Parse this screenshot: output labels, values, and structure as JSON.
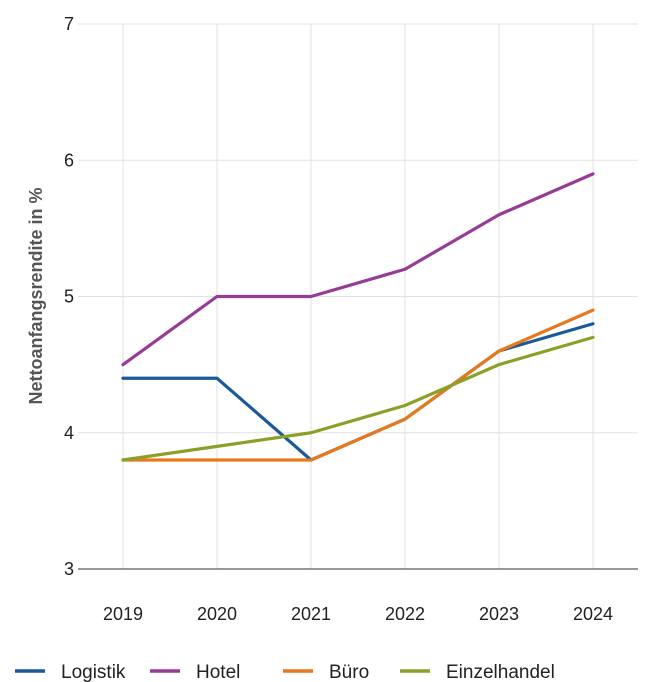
{
  "chart_data": {
    "type": "line",
    "title": "",
    "xlabel": "",
    "ylabel": "Nettoanfangsrendite in %",
    "x": [
      "2019",
      "2020",
      "2021",
      "2022",
      "2023",
      "2024"
    ],
    "ylim": [
      3,
      7
    ],
    "yticks": [
      "3",
      "4",
      "5",
      "6",
      "7"
    ],
    "grid": true,
    "legend_position": "bottom",
    "series": [
      {
        "name": "Logistik",
        "color": "#1a5a96",
        "values": [
          4.4,
          4.4,
          3.8,
          4.1,
          4.6,
          4.8
        ]
      },
      {
        "name": "Hotel",
        "color": "#963c96",
        "values": [
          4.5,
          5.0,
          5.0,
          5.2,
          5.6,
          5.9
        ]
      },
      {
        "name": "Büro",
        "color": "#e6781e",
        "values": [
          3.8,
          3.8,
          3.8,
          4.1,
          4.6,
          4.9
        ]
      },
      {
        "name": "Einzelhandel",
        "color": "#8ca028",
        "values": [
          3.8,
          3.9,
          4.0,
          4.2,
          4.5,
          4.7
        ]
      }
    ]
  }
}
